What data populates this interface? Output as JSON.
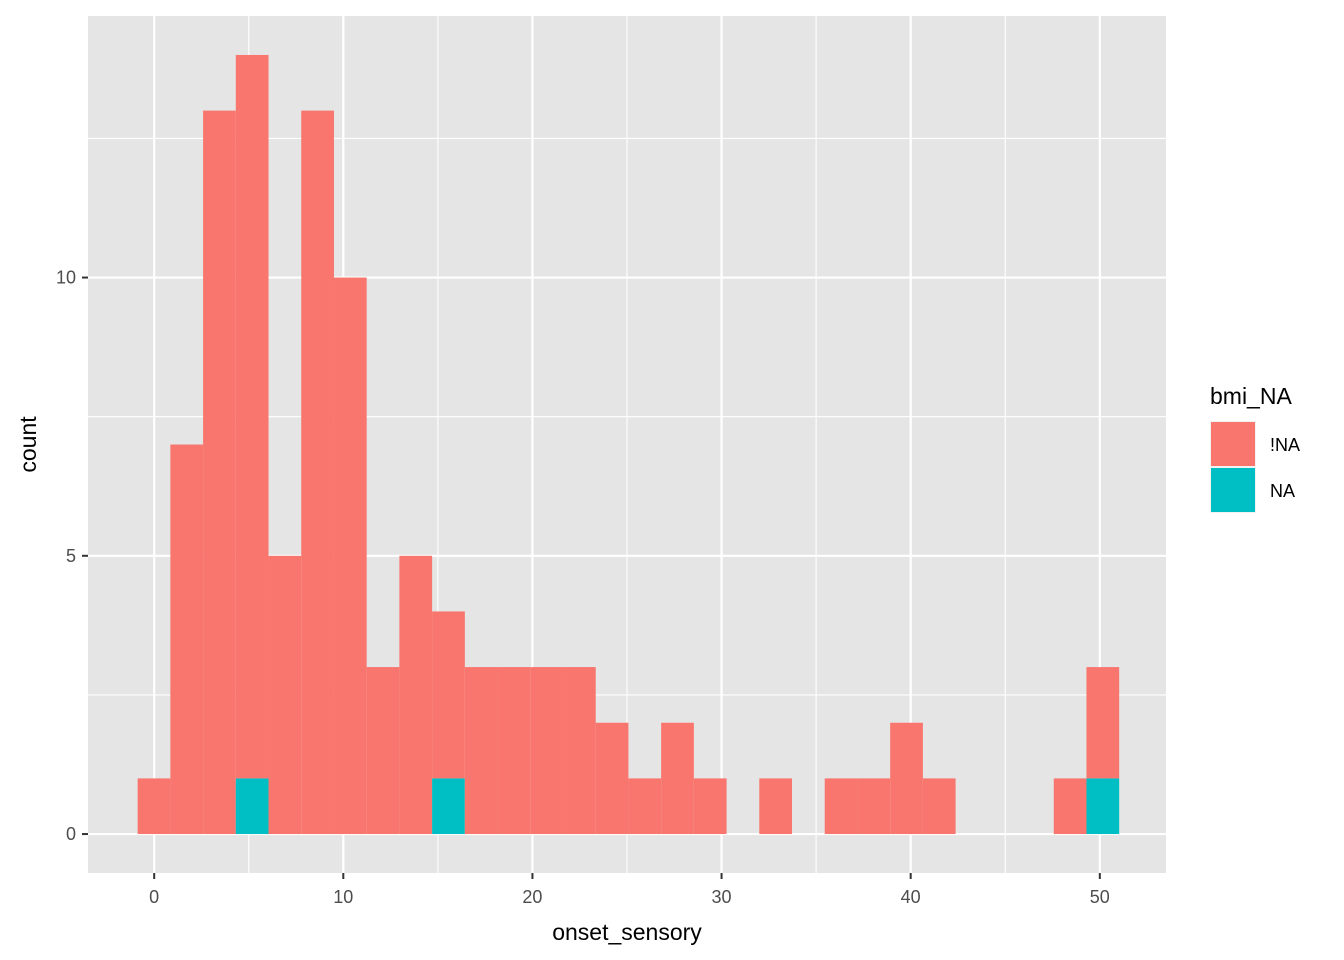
{
  "chart_data": {
    "type": "bar",
    "subtype": "stacked-histogram",
    "xlabel": "onset_sensory",
    "ylabel": "count",
    "xlim": [
      -3.5,
      53.5
    ],
    "ylim": [
      -0.7,
      14.7
    ],
    "x_ticks": [
      0,
      10,
      20,
      30,
      40,
      50
    ],
    "y_ticks": [
      0,
      5,
      10
    ],
    "grid": true,
    "panel_background": "#e5e5e5",
    "grid_color": "#ffffff",
    "legend": {
      "title": "bmi_NA",
      "position": "right",
      "entries": [
        {
          "label": "!NA",
          "color": "#f8766d"
        },
        {
          "label": "NA",
          "color": "#00bfc4"
        }
      ]
    },
    "bin_width": 1.73,
    "bin_centers": [
      -0.01,
      1.72,
      3.45,
      5.18,
      6.91,
      8.64,
      10.37,
      12.1,
      13.83,
      15.56,
      17.29,
      19.02,
      20.75,
      22.48,
      24.21,
      25.94,
      27.67,
      29.4,
      31.13,
      32.86,
      34.59,
      36.32,
      38.05,
      39.78,
      41.51,
      43.24,
      44.97,
      46.7,
      48.43,
      50.16
    ],
    "series": [
      {
        "name": "!NA",
        "color": "#f8766d",
        "values": [
          1,
          7,
          13,
          13,
          5,
          13,
          10,
          3,
          5,
          3,
          3,
          3,
          3,
          3,
          2,
          1,
          2,
          1,
          0,
          1,
          0,
          1,
          1,
          2,
          1,
          0,
          0,
          0,
          1,
          2
        ]
      },
      {
        "name": "NA",
        "color": "#00bfc4",
        "values": [
          0,
          0,
          0,
          1,
          0,
          0,
          0,
          0,
          0,
          1,
          0,
          0,
          0,
          0,
          0,
          0,
          0,
          0,
          0,
          0,
          0,
          0,
          0,
          0,
          0,
          0,
          0,
          0,
          0,
          1
        ]
      }
    ]
  }
}
